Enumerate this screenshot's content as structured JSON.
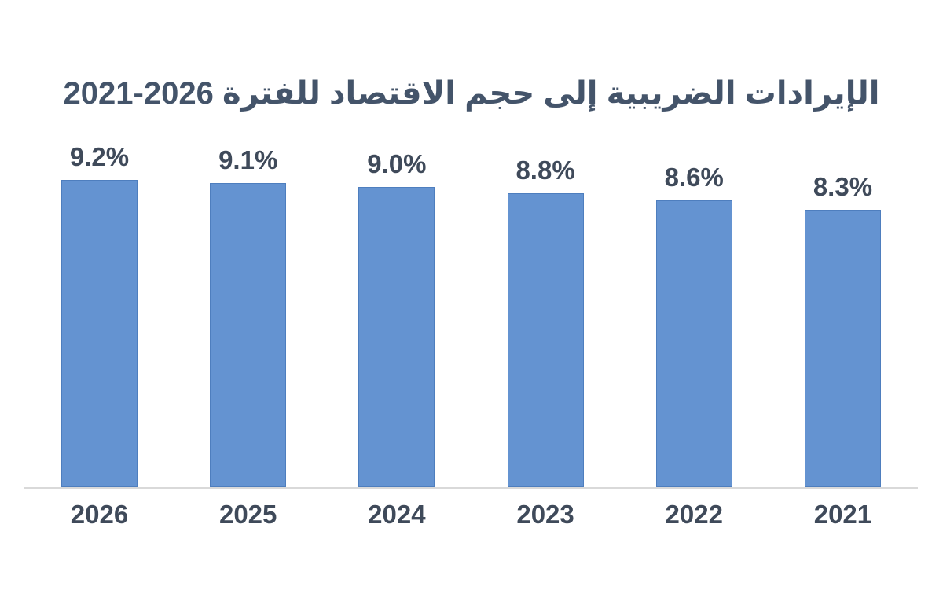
{
  "page": {
    "background": "#ffffff"
  },
  "chart_data": {
    "type": "bar",
    "title": "الإيرادات الضريبية إلى حجم الاقتصاد للفترة 2026-2021",
    "categories": [
      "2026",
      "2025",
      "2024",
      "2023",
      "2022",
      "2021"
    ],
    "values": [
      9.2,
      9.1,
      9.0,
      8.8,
      8.6,
      8.3
    ],
    "value_labels": [
      "9.2%",
      "9.1%",
      "9.0%",
      "8.8%",
      "8.6%",
      "8.3%"
    ],
    "xlabel": "",
    "ylabel": "",
    "ylim": [
      0,
      10
    ],
    "grid": false,
    "legend": false,
    "text_direction": "rtl",
    "bar_color": "#6493D1",
    "bar_border_color": "#4E7EBE",
    "axis_line_color": "#D9D9D9",
    "title_color": "#44546A",
    "label_color": "#3F4A5A"
  }
}
